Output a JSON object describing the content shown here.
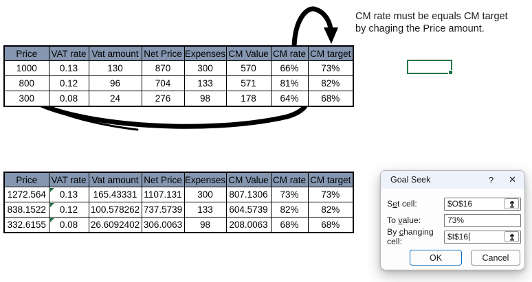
{
  "annotation": {
    "line1": "CM rate must be equals CM target",
    "line2": "by chaging the Price amount."
  },
  "tables": {
    "headers": [
      "Price",
      "VAT rate",
      "Vat amount",
      "Net Price",
      "Expenses",
      "CM Value",
      "CM rate",
      "CM target"
    ],
    "top": {
      "rows": [
        [
          "1000",
          "0.13",
          "130",
          "870",
          "300",
          "570",
          "66%",
          "73%"
        ],
        [
          "800",
          "0.12",
          "96",
          "704",
          "133",
          "571",
          "81%",
          "82%"
        ],
        [
          "300",
          "0.08",
          "24",
          "276",
          "98",
          "178",
          "64%",
          "68%"
        ]
      ],
      "error_flag_col": -1
    },
    "bottom": {
      "rows": [
        [
          "1272.564",
          "0.13",
          "165.43331",
          "1107.131",
          "300",
          "807.1306",
          "73%",
          "73%"
        ],
        [
          "838.1522",
          "0.12",
          "100.578262",
          "737.5739",
          "133",
          "604.5739",
          "82%",
          "82%"
        ],
        [
          "332.6155",
          "0.08",
          "26.6092402",
          "306.0063",
          "98",
          "208.0063",
          "68%",
          "68%"
        ]
      ],
      "error_flag_col": 1
    }
  },
  "dialog": {
    "title": "Goal Seek",
    "help_icon": "?",
    "close_icon": "✕",
    "fields": [
      {
        "label_pre": "S",
        "label_key": "e",
        "label_post": "t cell:",
        "value": "$O$16",
        "has_picker": true
      },
      {
        "label_pre": "To ",
        "label_key": "v",
        "label_post": "alue:",
        "value": "73%",
        "has_picker": false
      },
      {
        "label_pre": "By ",
        "label_key": "c",
        "label_post": "hanging cell:",
        "value": "$I$16",
        "has_picker": true
      }
    ],
    "ok_label": "OK",
    "cancel_label": "Cancel"
  },
  "colors": {
    "header_bg": "#8496B0",
    "table_border": "#000000",
    "excel_green": "#217346",
    "ok_button_border": "#0F6CBD",
    "dialog_title_bg": "#EDF2FB"
  }
}
